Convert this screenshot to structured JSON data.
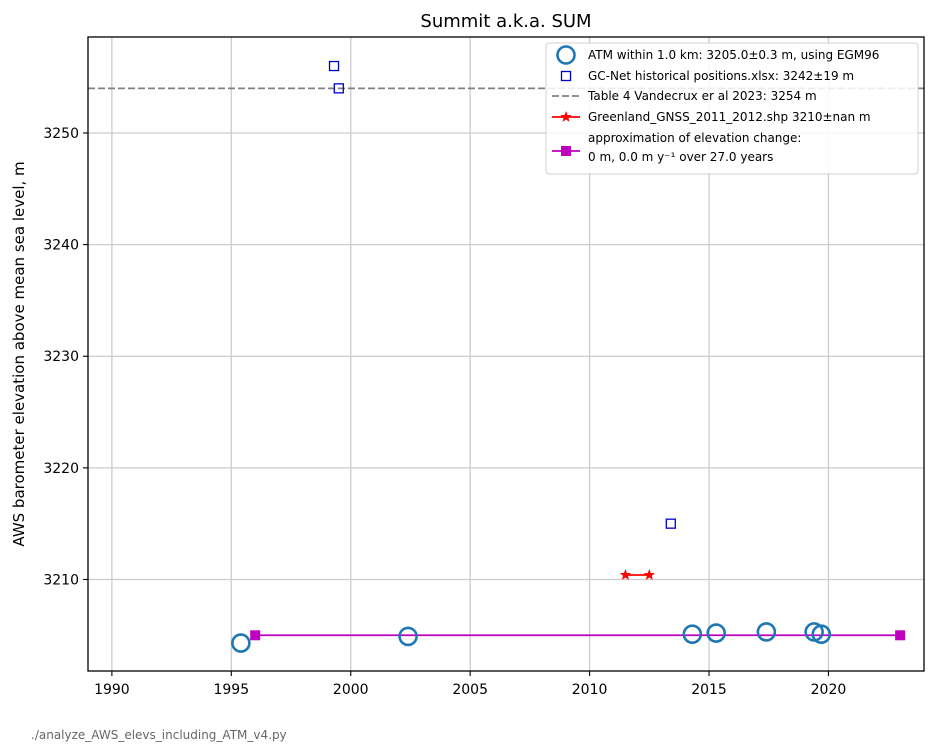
{
  "chart_data": {
    "type": "scatter",
    "title": "Summit a.k.a. SUM",
    "xlabel": "",
    "ylabel": "AWS barometer elevation above mean sea level, m",
    "xlim": [
      1989,
      2024
    ],
    "ylim": [
      3201.8,
      3258.6
    ],
    "xticks": [
      1990,
      1995,
      2000,
      2005,
      2010,
      2015,
      2020
    ],
    "yticks": [
      3210,
      3220,
      3230,
      3240,
      3250
    ],
    "grid": true,
    "legend_position": "top-right",
    "series": [
      {
        "name": "ATM within 1.0 km: 3205.0±0.3 m, using EGM96",
        "marker": "circle-open",
        "color": "#1f77b4",
        "points": [
          [
            1995.4,
            3204.3
          ],
          [
            2002.4,
            3204.9
          ],
          [
            2014.3,
            3205.1
          ],
          [
            2015.3,
            3205.2
          ],
          [
            2017.4,
            3205.3
          ],
          [
            2019.4,
            3205.3
          ],
          [
            2019.7,
            3205.1
          ]
        ]
      },
      {
        "name": "GC-Net historical positions.xlsx: 3242±19 m",
        "marker": "square-open",
        "color": "#0000cc",
        "points": [
          [
            1999.3,
            3256.0
          ],
          [
            1999.5,
            3254.0
          ],
          [
            2013.4,
            3215.0
          ]
        ]
      },
      {
        "name": "Table 4 Vandecrux er al 2023: 3254 m",
        "marker": "hline-dashed",
        "color": "#808080",
        "y": 3254
      },
      {
        "name": "Greenland_GNSS_2011_2012.shp 3210±nan m",
        "marker": "star-line",
        "color": "#ff0000",
        "points": [
          [
            2011.5,
            3210.4
          ],
          [
            2012.5,
            3210.4
          ]
        ]
      },
      {
        "name_line1": "approximation of elevation change:",
        "name_line2": " 0 m, 0.0 m y⁻¹ over 27.0 years",
        "marker": "square-line",
        "color": "#bf00bf",
        "points": [
          [
            1996.0,
            3205.0
          ],
          [
            2023.0,
            3205.0
          ]
        ]
      }
    ]
  },
  "footer": "./analyze_AWS_elevs_including_ATM_v4.py"
}
